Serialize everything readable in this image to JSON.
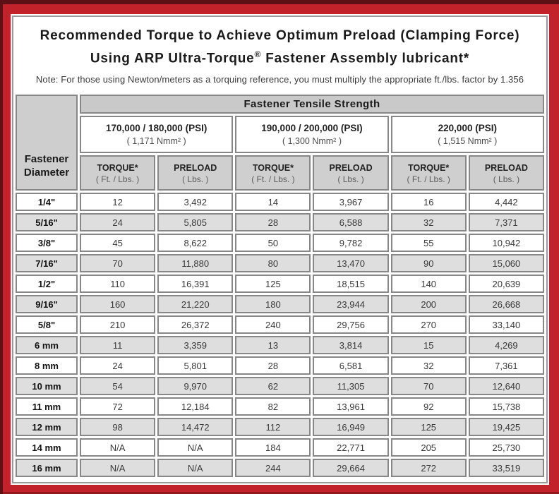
{
  "colors": {
    "frame_red": "#c2222a",
    "frame_edge_maroon": "#5d1114",
    "header_gray": "#cecece",
    "alt_row_gray": "#dedede",
    "cell_border_gray": "#878787"
  },
  "title": {
    "line1": "Recommended Torque to Achieve Optimum Preload (Clamping Force)",
    "line2_pre": "Using ARP Ultra-Torque",
    "line2_mark": "®",
    "line2_post": " Fastener Assembly lubricant*"
  },
  "note": "Note: For those using Newton/meters as a torquing reference, you must multiply the appropriate ft./lbs. factor by 1.356",
  "table": {
    "corner": {
      "line1": "Fastener",
      "line2": "Diameter"
    },
    "tensile_header": "Fastener Tensile Strength",
    "groups": [
      {
        "psi": "170,000 / 180,000 (PSI)",
        "nmm": "( 1,171 Nmm² )"
      },
      {
        "psi": "190,000 / 200,000 (PSI)",
        "nmm": "( 1,300 Nmm² )"
      },
      {
        "psi": "220,000 (PSI)",
        "nmm": "( 1,515 Nmm² )"
      }
    ],
    "col_headers": {
      "torque_label": "TORQUE*",
      "torque_unit": "( Ft. / Lbs. )",
      "preload_label": "PRELOAD",
      "preload_unit": "( Lbs. )"
    },
    "rows": [
      [
        "1/4\"",
        "12",
        "3,492",
        "14",
        "3,967",
        "16",
        "4,442"
      ],
      [
        "5/16\"",
        "24",
        "5,805",
        "28",
        "6,588",
        "32",
        "7,371"
      ],
      [
        "3/8\"",
        "45",
        "8,622",
        "50",
        "9,782",
        "55",
        "10,942"
      ],
      [
        "7/16\"",
        "70",
        "11,880",
        "80",
        "13,470",
        "90",
        "15,060"
      ],
      [
        "1/2\"",
        "110",
        "16,391",
        "125",
        "18,515",
        "140",
        "20,639"
      ],
      [
        "9/16\"",
        "160",
        "21,220",
        "180",
        "23,944",
        "200",
        "26,668"
      ],
      [
        "5/8\"",
        "210",
        "26,372",
        "240",
        "29,756",
        "270",
        "33,140"
      ],
      [
        "6 mm",
        "11",
        "3,359",
        "13",
        "3,814",
        "15",
        "4,269"
      ],
      [
        "8 mm",
        "24",
        "5,801",
        "28",
        "6,581",
        "32",
        "7,361"
      ],
      [
        "10 mm",
        "54",
        "9,970",
        "62",
        "11,305",
        "70",
        "12,640"
      ],
      [
        "11 mm",
        "72",
        "12,184",
        "82",
        "13,961",
        "92",
        "15,738"
      ],
      [
        "12 mm",
        "98",
        "14,472",
        "112",
        "16,949",
        "125",
        "19,425"
      ],
      [
        "14 mm",
        "N/A",
        "N/A",
        "184",
        "22,771",
        "205",
        "25,730"
      ],
      [
        "16 mm",
        "N/A",
        "N/A",
        "244",
        "29,664",
        "272",
        "33,519"
      ]
    ]
  }
}
